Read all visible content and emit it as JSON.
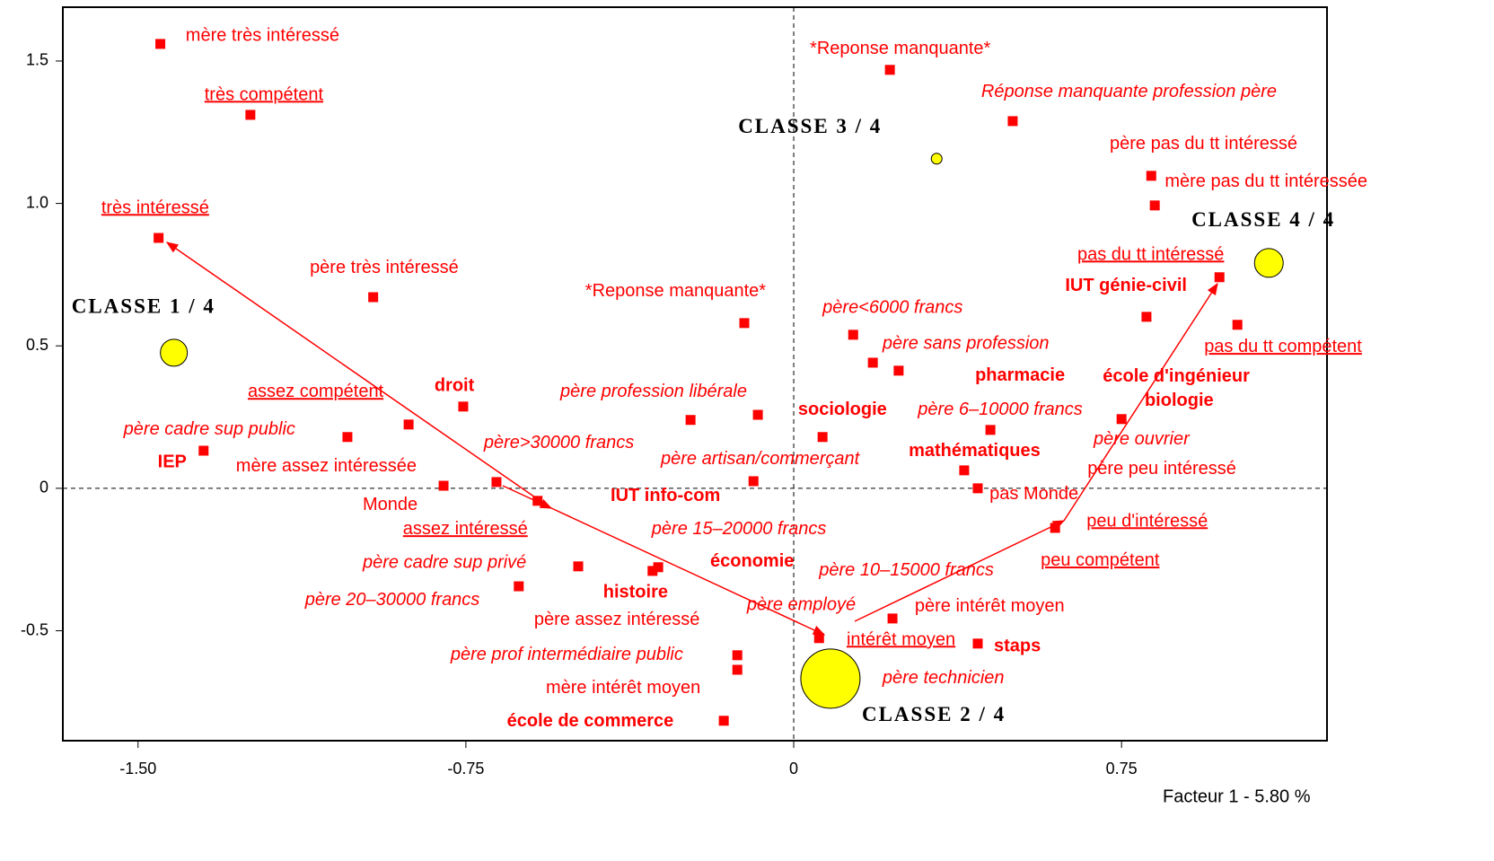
{
  "chart_data": {
    "type": "scatter",
    "xlabel": "Facteur 1  -  5.80 %",
    "xlim": [
      -1.672,
      1.22
    ],
    "ylim": [
      -0.886,
      1.689
    ],
    "xticks": [
      {
        "value": -1.5,
        "label": "-1.50"
      },
      -0.75,
      0,
      0.75
    ],
    "yticks": [
      -0.5,
      0,
      0.5,
      {
        "value": 1,
        "label": "1.0"
      },
      1.5
    ],
    "zero_lines": true,
    "series": [
      {
        "color": "#ff0000",
        "marker": "square",
        "x": [
          -1.449,
          -1.243,
          -1.453,
          -0.962,
          -1.35,
          -1.021,
          -0.881,
          -0.756,
          -0.801,
          -0.68,
          -0.586,
          -0.493,
          -0.629,
          -0.323,
          -0.31,
          -0.236,
          -0.113,
          -0.082,
          -0.092,
          -0.129,
          -0.129,
          -0.16,
          0.058,
          0.066,
          0.136,
          0.181,
          0.24,
          0.22,
          0.501,
          0.818,
          0.826,
          0.974,
          0.807,
          1.015,
          0.75,
          0.45,
          0.39,
          0.421,
          0.598,
          0.226,
          0.421
        ],
        "values": [
          1.56,
          1.311,
          0.879,
          0.671,
          0.132,
          0.18,
          0.224,
          0.287,
          0.009,
          0.022,
          -0.044,
          -0.274,
          -0.344,
          -0.29,
          -0.277,
          0.24,
          0.58,
          0.258,
          0.025,
          -0.586,
          -0.637,
          -0.816,
          -0.526,
          0.18,
          0.539,
          0.441,
          0.413,
          1.469,
          1.289,
          1.097,
          0.993,
          0.741,
          0.602,
          0.574,
          0.243,
          0.205,
          0.063,
          0.0,
          -0.139,
          -0.457,
          -0.545
        ]
      },
      {
        "color": "#ffff00",
        "marker": "circle",
        "x": [
          -1.418,
          0.327,
          1.087,
          0.084
        ],
        "values": [
          0.476,
          1.157,
          0.791,
          -0.668
        ],
        "sizes": [
          15,
          6,
          16,
          33
        ]
      }
    ],
    "annotations": [
      {
        "text": "mère très intéressé",
        "x": -1.391,
        "y": 1.588,
        "style": "normal"
      },
      {
        "text": "très compétent",
        "x": -1.348,
        "y": 1.38,
        "style": "underline"
      },
      {
        "text": "très intéressé",
        "x": -1.584,
        "y": 0.983,
        "style": "underline"
      },
      {
        "text": "père très intéressé",
        "x": -1.107,
        "y": 0.772,
        "style": "normal"
      },
      {
        "text": "CLASSE  1 /  4",
        "x": -1.652,
        "y": 0.633,
        "style": "class"
      },
      {
        "text": "assez compétent",
        "x": -1.249,
        "y": 0.337,
        "style": "underline"
      },
      {
        "text": "droit",
        "x": -0.822,
        "y": 0.359,
        "style": "bold"
      },
      {
        "text": "père cadre sup public",
        "x": -1.533,
        "y": 0.205,
        "style": "italic"
      },
      {
        "text": "IEP",
        "x": -1.455,
        "y": 0.091,
        "style": "bold"
      },
      {
        "text": "mère assez intéressée",
        "x": -1.276,
        "y": 0.076,
        "style": "normal"
      },
      {
        "text": "Monde",
        "x": -0.986,
        "y": -0.06,
        "style": "normal"
      },
      {
        "text": "père>30000 francs",
        "x": -0.709,
        "y": 0.158,
        "style": "italic"
      },
      {
        "text": "assez intéressé",
        "x": -0.894,
        "y": -0.145,
        "style": "underline"
      },
      {
        "text": "père cadre sup privé",
        "x": -0.986,
        "y": -0.262,
        "style": "italic"
      },
      {
        "text": "père 20–30000 francs",
        "x": -1.118,
        "y": -0.394,
        "style": "italic"
      },
      {
        "text": "histoire",
        "x": -0.436,
        "y": -0.366,
        "style": "bold"
      },
      {
        "text": "père assez intéressé",
        "x": -0.594,
        "y": -0.463,
        "style": "normal"
      },
      {
        "text": "père prof intermédiaire public",
        "x": -0.785,
        "y": -0.586,
        "style": "italic"
      },
      {
        "text": "mère intérêt moyen",
        "x": -0.567,
        "y": -0.703,
        "style": "normal"
      },
      {
        "text": "école de commerce",
        "x": -0.656,
        "y": -0.819,
        "style": "bold"
      },
      {
        "text": "IUT info-com",
        "x": -0.419,
        "y": -0.028,
        "style": "bold"
      },
      {
        "text": "père 15–20000 francs",
        "x": -0.325,
        "y": -0.145,
        "style": "italic"
      },
      {
        "text": "économie",
        "x": -0.191,
        "y": -0.258,
        "style": "bold"
      },
      {
        "text": "père profession libérale",
        "x": -0.534,
        "y": 0.337,
        "style": "italic"
      },
      {
        "text": "*Reponse manquante*",
        "x": -0.477,
        "y": 0.69,
        "style": "normal"
      },
      {
        "text": "père artisan/commerçant",
        "x": -0.304,
        "y": 0.101,
        "style": "italic"
      },
      {
        "text": "sociologie",
        "x": 0.01,
        "y": 0.274,
        "style": "bold"
      },
      {
        "text": "père<6000 francs",
        "x": 0.066,
        "y": 0.633,
        "style": "italic"
      },
      {
        "text": "père sans profession",
        "x": 0.203,
        "y": 0.507,
        "style": "italic"
      },
      {
        "text": "*Reponse manquante*",
        "x": 0.037,
        "y": 1.541,
        "style": "normal"
      },
      {
        "text": "Réponse manquante profession père",
        "x": 0.429,
        "y": 1.39,
        "style": "italic"
      },
      {
        "text": "CLASSE  3 /  4",
        "x": -0.127,
        "y": 1.264,
        "style": "class"
      },
      {
        "text": "père pas du tt intéressé",
        "x": 0.723,
        "y": 1.207,
        "style": "normal"
      },
      {
        "text": "mère pas du tt intéressée",
        "x": 0.849,
        "y": 1.075,
        "style": "normal"
      },
      {
        "text": "CLASSE  4 /  4",
        "x": 0.91,
        "y": 0.936,
        "style": "class"
      },
      {
        "text": "pas du tt intéressé",
        "x": 0.649,
        "y": 0.819,
        "style": "underline"
      },
      {
        "text": "IUT génie-civil",
        "x": 0.621,
        "y": 0.709,
        "style": "bold"
      },
      {
        "text": "pas du tt compétent",
        "x": 0.939,
        "y": 0.495,
        "style": "underline"
      },
      {
        "text": "pharmacie",
        "x": 0.415,
        "y": 0.394,
        "style": "bold"
      },
      {
        "text": "école d'ingénieur",
        "x": 0.707,
        "y": 0.391,
        "style": "bold"
      },
      {
        "text": "biologie",
        "x": 0.803,
        "y": 0.306,
        "style": "bold"
      },
      {
        "text": "père 6–10000 francs",
        "x": 0.284,
        "y": 0.274,
        "style": "italic"
      },
      {
        "text": "père ouvrier",
        "x": 0.686,
        "y": 0.17,
        "style": "italic"
      },
      {
        "text": "mathématiques",
        "x": 0.263,
        "y": 0.129,
        "style": "bold"
      },
      {
        "text": "père peu intéressé",
        "x": 0.672,
        "y": 0.066,
        "style": "normal"
      },
      {
        "text": "pas Monde",
        "x": 0.448,
        "y": -0.022,
        "style": "normal"
      },
      {
        "text": "peu d'intéressé",
        "x": 0.67,
        "y": -0.117,
        "style": "underline"
      },
      {
        "text": "peu compétent",
        "x": 0.565,
        "y": -0.255,
        "style": "underline"
      },
      {
        "text": "père 10–15000 francs",
        "x": 0.058,
        "y": -0.29,
        "style": "italic"
      },
      {
        "text": "père employé",
        "x": -0.107,
        "y": -0.41,
        "style": "italic"
      },
      {
        "text": "père intérêt moyen",
        "x": 0.277,
        "y": -0.416,
        "style": "normal"
      },
      {
        "text": "intérêt moyen",
        "x": 0.121,
        "y": -0.533,
        "style": "underline"
      },
      {
        "text": "staps",
        "x": 0.458,
        "y": -0.555,
        "style": "bold"
      },
      {
        "text": "père technicien",
        "x": 0.203,
        "y": -0.668,
        "style": "italic"
      },
      {
        "text": "CLASSE  2 /  4",
        "x": 0.156,
        "y": -0.8,
        "style": "class"
      }
    ]
  }
}
